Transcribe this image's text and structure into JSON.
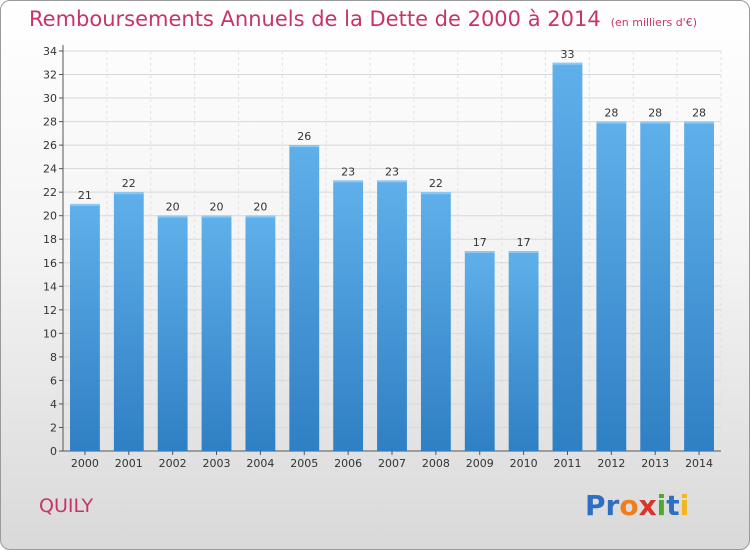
{
  "header": {
    "title": "Remboursements Annuels de la Dette de 2000 à 2014",
    "subtitle": "(en milliers d'€)"
  },
  "footer": {
    "commune": "QUILY",
    "logo_letters": [
      {
        "ch": "P",
        "color": "#2f6fc2"
      },
      {
        "ch": "r",
        "color": "#2f6fc2"
      },
      {
        "ch": "o",
        "color": "#f07e1b"
      },
      {
        "ch": "x",
        "color": "#d9332b"
      },
      {
        "ch": "i",
        "color": "#4da832"
      },
      {
        "ch": "t",
        "color": "#2f6fc2"
      },
      {
        "ch": "i",
        "color": "#f3b71b"
      }
    ]
  },
  "chart_data": {
    "type": "bar",
    "categories": [
      "2000",
      "2001",
      "2002",
      "2003",
      "2004",
      "2005",
      "2006",
      "2007",
      "2008",
      "2009",
      "2010",
      "2011",
      "2012",
      "2013",
      "2014"
    ],
    "values": [
      21,
      22,
      20,
      20,
      20,
      26,
      23,
      23,
      22,
      17,
      17,
      33,
      28,
      28,
      28
    ],
    "title": "Remboursements Annuels de la Dette de 2000 à 2014",
    "xlabel": "",
    "ylabel": "",
    "ylim": [
      0,
      34
    ],
    "yticks": [
      0,
      2,
      4,
      6,
      8,
      10,
      12,
      14,
      16,
      18,
      20,
      22,
      24,
      26,
      28,
      30,
      32,
      34
    ],
    "grid": true,
    "bar_color": "#4a9fe0"
  }
}
